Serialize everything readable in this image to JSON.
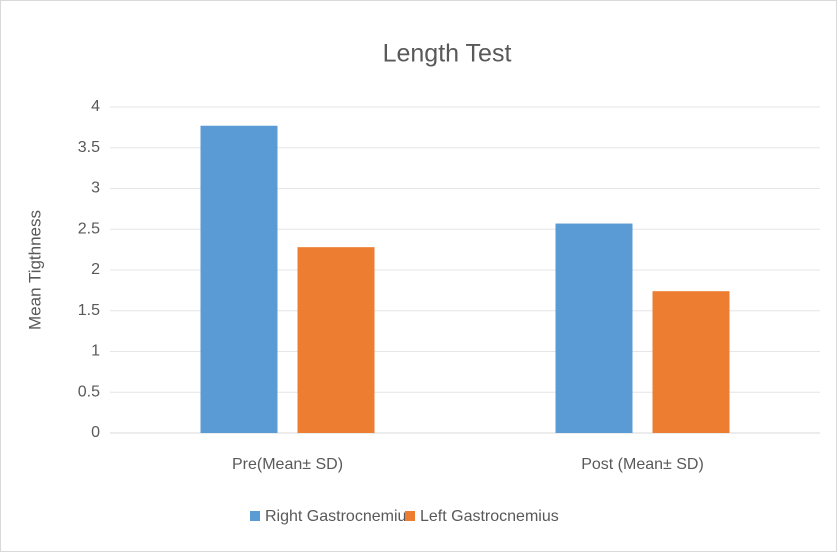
{
  "chart_data": {
    "type": "bar",
    "title": "Length Test",
    "y_label": "Mean Tigthness",
    "categories": [
      "Pre(Mean± SD)",
      "Post (Mean± SD)"
    ],
    "series": [
      {
        "name": "Right Gastrocnemius",
        "color": "#5b9bd5",
        "values": [
          3.77,
          2.57
        ]
      },
      {
        "name": "Left Gastrocnemius",
        "color": "#ed7d31",
        "values": [
          2.28,
          1.74
        ]
      }
    ],
    "ylim": [
      0,
      4
    ],
    "yticks": [
      0,
      0.5,
      1,
      1.5,
      2,
      2.5,
      3,
      3.5,
      4
    ],
    "grid": true,
    "legend": "bottom"
  }
}
